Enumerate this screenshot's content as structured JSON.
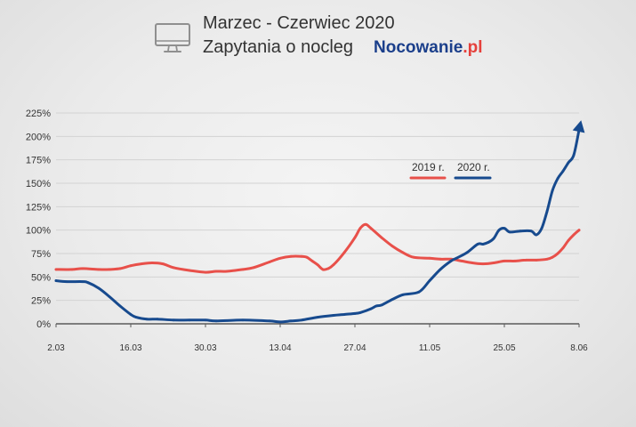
{
  "header": {
    "icon": "monitor-icon",
    "logo_main": "Nocowanie",
    "logo_suffix": ".pl"
  },
  "colors": {
    "text": "#333333",
    "icon": "#8f8f8f",
    "logo_main": "#1b3f8b",
    "logo_suffix": "#e5403b",
    "grid": "#d3d3d3",
    "axis": "#5a5a5a"
  },
  "chart_data": {
    "type": "line",
    "title": "Marzec - Czerwiec 2020",
    "subtitle": "Zapytania o nocleg",
    "x_ticks": [
      "2.03",
      "16.03",
      "30.03",
      "13.04",
      "27.04",
      "11.05",
      "25.05",
      "8.06"
    ],
    "y_ticks": [
      "0%",
      "25%",
      "50%",
      "75%",
      "100%",
      "125%",
      "150%",
      "175%",
      "200%",
      "225%"
    ],
    "ylim": [
      0,
      225
    ],
    "grid": true,
    "legend_position": "top-right",
    "series": [
      {
        "name": "2019 r.",
        "color": "#e8504a",
        "end_arrow": false,
        "points": [
          {
            "x": "2.03",
            "y": 58
          },
          {
            "x": "5.03",
            "y": 58
          },
          {
            "x": "7.03",
            "y": 59
          },
          {
            "x": "10.03",
            "y": 58
          },
          {
            "x": "12.03",
            "y": 58
          },
          {
            "x": "14.03",
            "y": 59
          },
          {
            "x": "16.03",
            "y": 62
          },
          {
            "x": "18.03",
            "y": 64
          },
          {
            "x": "20.03",
            "y": 65
          },
          {
            "x": "22.03",
            "y": 64
          },
          {
            "x": "24.03",
            "y": 60
          },
          {
            "x": "27.03",
            "y": 57
          },
          {
            "x": "30.03",
            "y": 55
          },
          {
            "x": "1.04",
            "y": 56
          },
          {
            "x": "3.04",
            "y": 56
          },
          {
            "x": "6.04",
            "y": 58
          },
          {
            "x": "8.04",
            "y": 60
          },
          {
            "x": "11.04",
            "y": 66
          },
          {
            "x": "13.04",
            "y": 70
          },
          {
            "x": "15.04",
            "y": 72
          },
          {
            "x": "17.04",
            "y": 72
          },
          {
            "x": "18.04",
            "y": 71
          },
          {
            "x": "19.04",
            "y": 67
          },
          {
            "x": "20.04",
            "y": 63
          },
          {
            "x": "21.04",
            "y": 58
          },
          {
            "x": "22.04",
            "y": 59
          },
          {
            "x": "23.04",
            "y": 63
          },
          {
            "x": "25.04",
            "y": 76
          },
          {
            "x": "27.04",
            "y": 92
          },
          {
            "x": "28.04",
            "y": 102
          },
          {
            "x": "29.04",
            "y": 106
          },
          {
            "x": "30.04",
            "y": 102
          },
          {
            "x": "2.05",
            "y": 92
          },
          {
            "x": "4.05",
            "y": 83
          },
          {
            "x": "6.05",
            "y": 76
          },
          {
            "x": "8.05",
            "y": 71
          },
          {
            "x": "11.05",
            "y": 70
          },
          {
            "x": "13.05",
            "y": 69
          },
          {
            "x": "15.05",
            "y": 69
          },
          {
            "x": "17.05",
            "y": 67
          },
          {
            "x": "19.05",
            "y": 65
          },
          {
            "x": "21.05",
            "y": 64
          },
          {
            "x": "23.05",
            "y": 65
          },
          {
            "x": "25.05",
            "y": 67
          },
          {
            "x": "27.05",
            "y": 67
          },
          {
            "x": "29.05",
            "y": 68
          },
          {
            "x": "31.05",
            "y": 68
          },
          {
            "x": "2.06",
            "y": 69
          },
          {
            "x": "3.06",
            "y": 71
          },
          {
            "x": "4.06",
            "y": 75
          },
          {
            "x": "5.06",
            "y": 81
          },
          {
            "x": "6.06",
            "y": 89
          },
          {
            "x": "7.06",
            "y": 95
          },
          {
            "x": "8.06",
            "y": 100
          }
        ]
      },
      {
        "name": "2020 r.",
        "color": "#174a8e",
        "end_arrow": true,
        "points": [
          {
            "x": "2.03",
            "y": 46
          },
          {
            "x": "4.03",
            "y": 45
          },
          {
            "x": "7.03",
            "y": 45
          },
          {
            "x": "8.03",
            "y": 44
          },
          {
            "x": "10.03",
            "y": 38
          },
          {
            "x": "12.03",
            "y": 29
          },
          {
            "x": "14.03",
            "y": 19
          },
          {
            "x": "16.03",
            "y": 10
          },
          {
            "x": "17.03",
            "y": 7
          },
          {
            "x": "19.03",
            "y": 5
          },
          {
            "x": "21.03",
            "y": 5
          },
          {
            "x": "24.03",
            "y": 4
          },
          {
            "x": "27.03",
            "y": 4
          },
          {
            "x": "30.03",
            "y": 4
          },
          {
            "x": "1.04",
            "y": 3
          },
          {
            "x": "6.04",
            "y": 4
          },
          {
            "x": "11.04",
            "y": 3
          },
          {
            "x": "13.04",
            "y": 2
          },
          {
            "x": "15.04",
            "y": 3
          },
          {
            "x": "17.04",
            "y": 4
          },
          {
            "x": "20.04",
            "y": 7
          },
          {
            "x": "23.04",
            "y": 9
          },
          {
            "x": "25.04",
            "y": 10
          },
          {
            "x": "27.04",
            "y": 11
          },
          {
            "x": "28.04",
            "y": 12
          },
          {
            "x": "30.04",
            "y": 16
          },
          {
            "x": "1.05",
            "y": 19
          },
          {
            "x": "2.05",
            "y": 20
          },
          {
            "x": "4.05",
            "y": 26
          },
          {
            "x": "6.05",
            "y": 31
          },
          {
            "x": "9.05",
            "y": 34
          },
          {
            "x": "11.05",
            "y": 46
          },
          {
            "x": "13.05",
            "y": 58
          },
          {
            "x": "15.05",
            "y": 67
          },
          {
            "x": "16.05",
            "y": 70
          },
          {
            "x": "18.05",
            "y": 76
          },
          {
            "x": "20.05",
            "y": 85
          },
          {
            "x": "21.05",
            "y": 85
          },
          {
            "x": "22.05",
            "y": 87
          },
          {
            "x": "23.05",
            "y": 91
          },
          {
            "x": "24.05",
            "y": 100
          },
          {
            "x": "25.05",
            "y": 102
          },
          {
            "x": "26.05",
            "y": 98
          },
          {
            "x": "28.05",
            "y": 99
          },
          {
            "x": "30.05",
            "y": 99
          },
          {
            "x": "31.05",
            "y": 95
          },
          {
            "x": "1.06",
            "y": 102
          },
          {
            "x": "2.06",
            "y": 120
          },
          {
            "x": "3.06",
            "y": 142
          },
          {
            "x": "4.06",
            "y": 155
          },
          {
            "x": "5.06",
            "y": 163
          },
          {
            "x": "6.06",
            "y": 172
          },
          {
            "x": "7.06",
            "y": 180
          },
          {
            "x": "8.06",
            "y": 207
          }
        ]
      }
    ]
  }
}
